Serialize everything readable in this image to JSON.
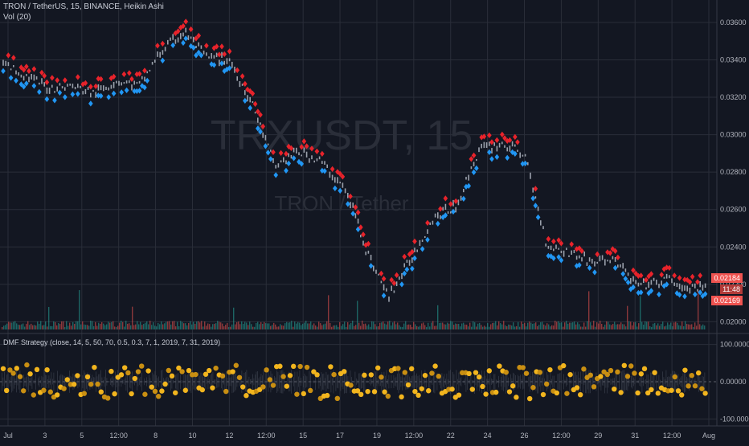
{
  "header": {
    "symbol_line": "TRON / TetherUS, 15, BINANCE, Heikin Ashi",
    "volume_line": "Vol (20)",
    "watermark_symbol": "TRXUSDT, 15",
    "watermark_name": "TRON / Tether"
  },
  "indicator": {
    "label": "DMF Strategy (close, 14, 5, 50, 70, 0.5, 0.3, 7, 1, 2019, 7, 31, 2019)"
  },
  "price_tags": [
    "0.02184",
    "11:48",
    "0.02169"
  ],
  "colors": {
    "background": "#131722",
    "grid": "#2a2e39",
    "up_marker": "#e8232b",
    "down_marker": "#2196f3",
    "candle": "#9aa0ab",
    "dot": "#f2b51e",
    "dot_dark": "#c98f12",
    "tag": "#ef5350"
  },
  "chart_data": [
    {
      "type": "line",
      "title": "TRON / TetherUS, 15, BINANCE, Heikin Ashi",
      "x_ticks": [
        "Jul",
        "3",
        "5",
        "12:00",
        "8",
        "10",
        "12",
        "12:00",
        "15",
        "17",
        "19",
        "12:00",
        "22",
        "24",
        "26",
        "12:00",
        "29",
        "31",
        "12:00",
        "Aug"
      ],
      "y_ticks": [
        "0.02000",
        "0.02200",
        "0.02400",
        "0.02600",
        "0.02800",
        "0.03000",
        "0.03200",
        "0.03400",
        "0.03600"
      ],
      "ylim": [
        0.0195,
        0.0372
      ],
      "x": [
        0,
        2,
        3,
        4,
        5,
        6,
        7,
        8,
        9,
        10,
        11,
        12,
        13,
        14,
        15,
        15.5,
        16,
        17,
        18,
        19,
        20,
        21,
        22,
        23,
        24,
        25,
        26,
        27,
        28,
        29,
        29.5,
        30,
        31
      ],
      "series": [
        {
          "values": [
            0.0338,
            0.0325,
            0.0326,
            0.0322,
            0.0329,
            0.0326,
            0.0345,
            0.0355,
            0.0341,
            0.034,
            0.0316,
            0.0283,
            0.0291,
            0.0286,
            0.0272,
            0.0259,
            0.0239,
            0.0213,
            0.0234,
            0.0256,
            0.0262,
            0.0292,
            0.0295,
            0.029,
            0.0241,
            0.0237,
            0.0232,
            0.0233,
            0.0219,
            0.0221,
            0.0223,
            0.0217,
            0.0218
          ]
        }
      ],
      "grid": true
    },
    {
      "type": "scatter",
      "title": "DMF Strategy (close, 14, 5, 50, 70, 0.5, 0.3, 7, 1, 2019, 7, 31, 2019)",
      "y_ticks": [
        "100.00000",
        "0.00000",
        "-100.00000"
      ],
      "ylim": [
        -110,
        110
      ],
      "x": [
        0,
        1.5,
        3,
        4.5,
        6,
        7.5,
        9,
        10.5,
        12,
        13.5,
        15,
        16.5,
        18,
        19.5,
        21,
        22.5,
        24,
        25.5,
        27,
        28.5,
        30,
        31
      ],
      "values": [
        30,
        -25,
        35,
        -30,
        25,
        -20,
        30,
        -35,
        20,
        -25,
        35,
        -30,
        25,
        -20,
        30,
        -25,
        35,
        -30,
        25,
        -20,
        30,
        -25
      ]
    }
  ]
}
